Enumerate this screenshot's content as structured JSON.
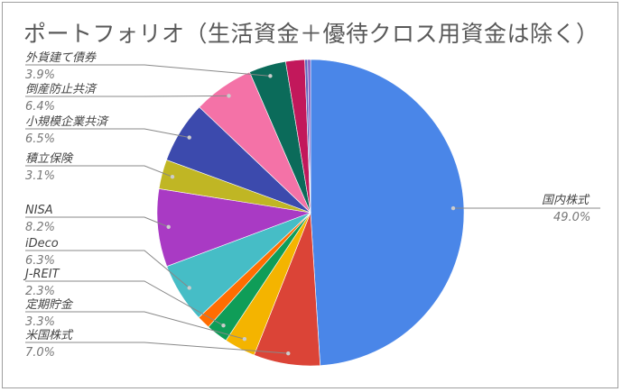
{
  "chart_data": {
    "type": "pie",
    "title": "ポートフォリオ（生活資金＋優待クロス用資金は除く）",
    "start_angle_deg": 0,
    "direction": "clockwise",
    "slices": [
      {
        "name": "国内株式",
        "pct_label": "49.0%",
        "value": 49.0,
        "color": "#4a86e8",
        "label_side": "right"
      },
      {
        "name": "米国株式",
        "pct_label": "7.0%",
        "value": 7.0,
        "color": "#db4437",
        "label_side": "left"
      },
      {
        "name": "定期貯金",
        "pct_label": "3.3%",
        "value": 3.3,
        "color": "#f4b400",
        "label_side": "left"
      },
      {
        "name": "J-REIT",
        "pct_label": "2.3%",
        "value": 2.3,
        "color": "#0f9d58",
        "label_side": "left"
      },
      {
        "name": "",
        "pct_label": "",
        "value": 1.4,
        "color": "#ff6d01",
        "label_side": "none"
      },
      {
        "name": "iDeco",
        "pct_label": "6.3%",
        "value": 6.3,
        "color": "#46bdc6",
        "label_side": "left"
      },
      {
        "name": "NISA",
        "pct_label": "8.2%",
        "value": 8.2,
        "color": "#a93ac4",
        "label_side": "left"
      },
      {
        "name": "積立保険",
        "pct_label": "3.1%",
        "value": 3.1,
        "color": "#c0b624",
        "label_side": "left"
      },
      {
        "name": "小規模企業共済",
        "pct_label": "6.5%",
        "value": 6.5,
        "color": "#3c4aad",
        "label_side": "left"
      },
      {
        "name": "倒産防止共済",
        "pct_label": "6.4%",
        "value": 6.4,
        "color": "#f472a7",
        "label_side": "left"
      },
      {
        "name": "外貨建て債券",
        "pct_label": "3.9%",
        "value": 3.9,
        "color": "#0b6b5a",
        "label_side": "left"
      },
      {
        "name": "",
        "pct_label": "",
        "value": 2.0,
        "color": "#c2185b",
        "label_side": "none"
      },
      {
        "name": "",
        "pct_label": "",
        "value": 0.3,
        "color": "#5c6bc0",
        "label_side": "none"
      },
      {
        "name": "",
        "pct_label": "",
        "value": 0.3,
        "color": "#7e57c2",
        "label_side": "none"
      }
    ]
  },
  "colors": {
    "frame_border": "#9e9e9e",
    "title_text": "#595959",
    "leader_line": "#888888"
  }
}
